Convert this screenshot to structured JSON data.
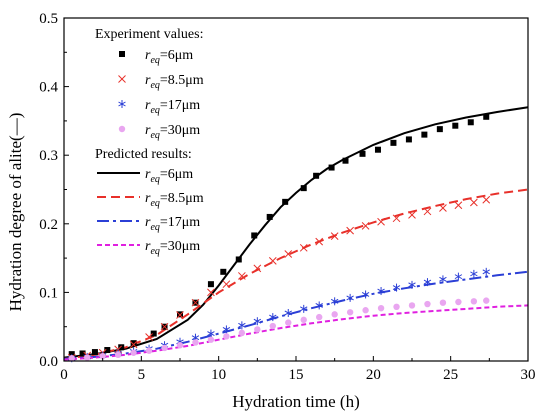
{
  "chart_data": {
    "type": "scatter",
    "xlabel": "Hydration time (h)",
    "ylabel": "Hydration degree of alite(—)",
    "xlim": [
      0,
      30
    ],
    "ylim": [
      0,
      0.5
    ],
    "xticks": [
      "0",
      "5",
      "10",
      "15",
      "20",
      "25",
      "30"
    ],
    "yticks": [
      "0.0",
      "0.1",
      "0.2",
      "0.3",
      "0.4",
      "0.5"
    ],
    "grid": false,
    "legend_position": "top-left",
    "legend": {
      "experiment_heading": "Experiment values:",
      "predicted_heading": "Predicted results:",
      "symbol": "r",
      "subscript": "eq"
    },
    "experiment_series": [
      {
        "name": "6μm",
        "color": "#000000",
        "marker": "square",
        "x": [
          0.5,
          1.2,
          2.0,
          2.8,
          3.7,
          4.5,
          5.8,
          6.5,
          7.5,
          8.5,
          9.5,
          10.3,
          11.3,
          12.3,
          13.3,
          14.3,
          15.5,
          16.3,
          17.3,
          18.2,
          19.3,
          20.3,
          21.3,
          22.3,
          23.3,
          24.3,
          25.3,
          26.3,
          27.3
        ],
        "y": [
          0.01,
          0.011,
          0.013,
          0.016,
          0.02,
          0.026,
          0.04,
          0.05,
          0.068,
          0.085,
          0.112,
          0.13,
          0.148,
          0.183,
          0.21,
          0.232,
          0.252,
          0.27,
          0.282,
          0.292,
          0.302,
          0.308,
          0.318,
          0.323,
          0.33,
          0.338,
          0.343,
          0.348,
          0.356
        ]
      },
      {
        "name": "8.5μm",
        "color": "#e8302a",
        "marker": "x",
        "x": [
          0.5,
          1.5,
          2.5,
          3.5,
          4.5,
          5.5,
          6.5,
          7.5,
          8.5,
          9.5,
          10.5,
          11.5,
          12.5,
          13.5,
          14.5,
          15.5,
          16.5,
          17.5,
          18.5,
          19.5,
          20.5,
          21.5,
          22.5,
          23.5,
          24.5,
          25.5,
          26.5,
          27.3
        ],
        "y": [
          0.005,
          0.008,
          0.012,
          0.017,
          0.024,
          0.035,
          0.05,
          0.067,
          0.085,
          0.1,
          0.112,
          0.124,
          0.135,
          0.146,
          0.156,
          0.165,
          0.174,
          0.182,
          0.19,
          0.197,
          0.203,
          0.208,
          0.213,
          0.218,
          0.223,
          0.227,
          0.231,
          0.235
        ]
      },
      {
        "name": "17μm",
        "color": "#2b3fd6",
        "marker": "asterisk",
        "x": [
          0.5,
          1.5,
          2.5,
          3.5,
          4.5,
          5.5,
          6.5,
          7.5,
          8.5,
          9.5,
          10.5,
          11.5,
          12.5,
          13.5,
          14.5,
          15.5,
          16.5,
          17.5,
          18.5,
          19.5,
          20.5,
          21.5,
          22.5,
          23.5,
          24.5,
          25.5,
          26.5,
          27.3
        ],
        "y": [
          0.004,
          0.006,
          0.008,
          0.011,
          0.014,
          0.018,
          0.023,
          0.028,
          0.034,
          0.04,
          0.046,
          0.052,
          0.058,
          0.064,
          0.07,
          0.076,
          0.081,
          0.087,
          0.092,
          0.097,
          0.102,
          0.107,
          0.111,
          0.115,
          0.119,
          0.123,
          0.127,
          0.13
        ]
      },
      {
        "name": "30μm",
        "color": "#e9a6f0",
        "marker": "circle",
        "x": [
          0.5,
          1.5,
          2.5,
          3.5,
          4.5,
          5.5,
          6.5,
          7.5,
          8.5,
          9.5,
          10.5,
          11.5,
          12.5,
          13.5,
          14.5,
          15.5,
          16.5,
          17.5,
          18.5,
          19.5,
          20.5,
          21.5,
          22.5,
          23.5,
          24.5,
          25.5,
          26.5,
          27.3
        ],
        "y": [
          0.004,
          0.005,
          0.007,
          0.009,
          0.012,
          0.015,
          0.019,
          0.023,
          0.027,
          0.031,
          0.036,
          0.041,
          0.046,
          0.051,
          0.056,
          0.06,
          0.064,
          0.068,
          0.071,
          0.074,
          0.077,
          0.079,
          0.081,
          0.083,
          0.085,
          0.086,
          0.087,
          0.088
        ]
      }
    ],
    "predicted_series": [
      {
        "name": "6μm",
        "color": "#000000",
        "dash": "solid",
        "x": [
          0,
          2,
          4,
          6,
          8,
          9,
          10,
          11,
          12,
          13,
          14,
          15,
          16,
          17,
          18,
          20,
          22,
          24,
          26,
          28,
          30
        ],
        "y": [
          0.005,
          0.01,
          0.018,
          0.032,
          0.06,
          0.082,
          0.11,
          0.14,
          0.17,
          0.198,
          0.224,
          0.245,
          0.264,
          0.28,
          0.293,
          0.315,
          0.332,
          0.345,
          0.355,
          0.363,
          0.37
        ]
      },
      {
        "name": "8.5μm",
        "color": "#e8302a",
        "dash": "dash",
        "x": [
          0,
          2,
          4,
          6,
          8,
          10,
          12,
          14,
          16,
          18,
          20,
          22,
          24,
          26,
          28,
          30
        ],
        "y": [
          0.003,
          0.009,
          0.02,
          0.038,
          0.068,
          0.1,
          0.127,
          0.15,
          0.17,
          0.187,
          0.202,
          0.215,
          0.226,
          0.236,
          0.244,
          0.25
        ]
      },
      {
        "name": "17μm",
        "color": "#2b3fd6",
        "dash": "dashdot",
        "x": [
          0,
          2,
          4,
          6,
          8,
          10,
          12,
          14,
          16,
          18,
          20,
          22,
          24,
          26,
          28,
          30
        ],
        "y": [
          0.003,
          0.006,
          0.011,
          0.018,
          0.028,
          0.04,
          0.052,
          0.065,
          0.077,
          0.088,
          0.098,
          0.106,
          0.113,
          0.119,
          0.125,
          0.13
        ]
      },
      {
        "name": "30μm",
        "color": "#e020e0",
        "dash": "shortdash",
        "x": [
          0,
          2,
          4,
          6,
          8,
          10,
          12,
          14,
          16,
          18,
          20,
          22,
          24,
          26,
          28,
          30
        ],
        "y": [
          0.002,
          0.005,
          0.009,
          0.015,
          0.022,
          0.031,
          0.04,
          0.048,
          0.055,
          0.061,
          0.066,
          0.07,
          0.073,
          0.076,
          0.079,
          0.081
        ]
      }
    ]
  }
}
